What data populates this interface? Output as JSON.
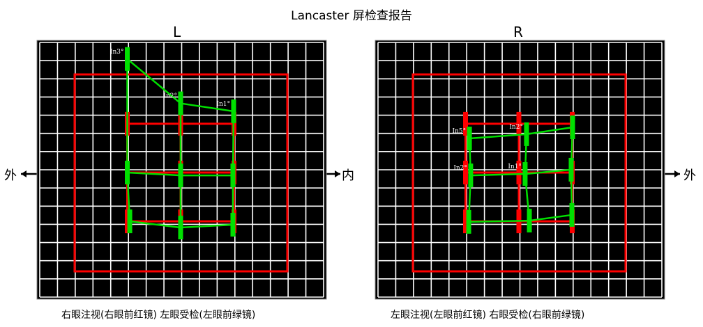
{
  "title": "Lancaster 屏检查报告",
  "directions": {
    "outer": "外",
    "inner": "内"
  },
  "colors": {
    "grid_bg": "#000000",
    "grid_line": "#ffffff",
    "red": "#ff0000",
    "green": "#00e000",
    "arrow": "#000000"
  },
  "panels": [
    {
      "label": "L",
      "caption": "右眼注视(右眼前红镜)  左眼受检(左眼前绿镜)",
      "red_points": [
        [
          -3,
          2.75
        ],
        [
          0,
          2.75
        ],
        [
          3,
          2.75
        ],
        [
          -3,
          0
        ],
        [
          0,
          0
        ],
        [
          3,
          0
        ],
        [
          -3,
          -2.75
        ],
        [
          0,
          -2.75
        ],
        [
          3,
          -2.75
        ]
      ],
      "green_points": [
        [
          -3,
          6.4
        ],
        [
          0,
          3.9
        ],
        [
          2.98,
          3.45
        ],
        [
          -3,
          0
        ],
        [
          0,
          -0.16
        ],
        [
          2.94,
          -0.16
        ],
        [
          -2.86,
          -2.75
        ],
        [
          0,
          -3.1
        ],
        [
          2.94,
          -2.94
        ]
      ],
      "annotations": [
        {
          "text": "In3°",
          "point": 0
        },
        {
          "text": "In2°",
          "point": 1
        },
        {
          "text": "In1°",
          "point": 2
        }
      ]
    },
    {
      "label": "R",
      "caption": "左眼注视(左眼前红镜)  右眼受检(右眼前绿镜)",
      "red_points": [
        [
          -3,
          2.75
        ],
        [
          0,
          2.75
        ],
        [
          3,
          2.75
        ],
        [
          -3,
          0
        ],
        [
          0,
          0
        ],
        [
          3,
          0
        ],
        [
          -3,
          -2.75
        ],
        [
          0,
          -2.75
        ],
        [
          3,
          -2.75
        ]
      ],
      "green_points": [
        [
          -2.78,
          1.92
        ],
        [
          0.43,
          2.16
        ],
        [
          3.02,
          2.55
        ],
        [
          -2.71,
          -0.16
        ],
        [
          0.35,
          -0.08
        ],
        [
          2.94,
          0.16
        ],
        [
          -2.82,
          -2.78
        ],
        [
          0.59,
          -2.71
        ],
        [
          2.98,
          -2.39
        ]
      ],
      "annotations": [
        {
          "text": "In5°",
          "point": 0
        },
        {
          "text": "In2°",
          "point": 1
        },
        {
          "text": "In2°",
          "point": 3
        },
        {
          "text": "In1°",
          "point": 4
        }
      ]
    }
  ]
}
